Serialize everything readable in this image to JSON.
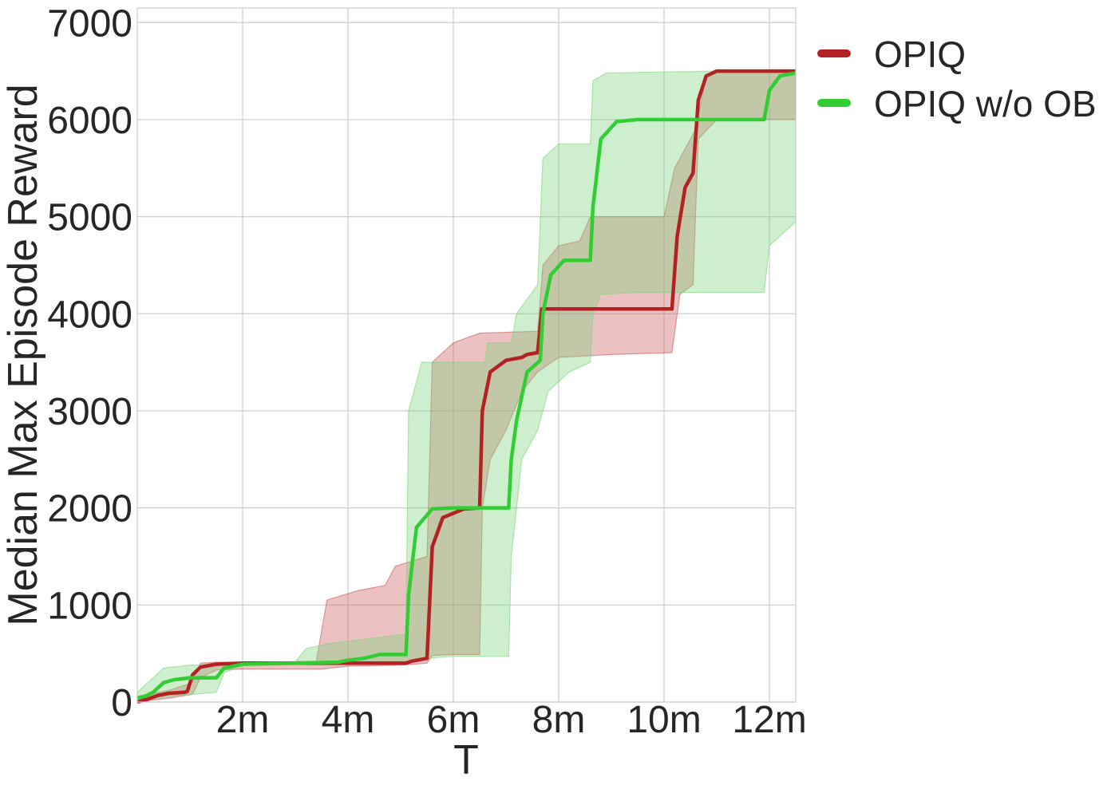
{
  "chart_data": {
    "type": "line",
    "xlabel": "T",
    "ylabel": "Median Max Episode Reward",
    "xlim": [
      0,
      12.5
    ],
    "ylim": [
      0,
      7150
    ],
    "x_unit_suffix": "m",
    "xticks": [
      2,
      4,
      6,
      8,
      10,
      12
    ],
    "xtick_labels": [
      "2m",
      "4m",
      "6m",
      "8m",
      "10m",
      "12m"
    ],
    "yticks": [
      0,
      1000,
      2000,
      3000,
      4000,
      5000,
      6000,
      7000
    ],
    "ytick_labels": [
      "0",
      "1000",
      "2000",
      "3000",
      "4000",
      "5000",
      "6000",
      "7000"
    ],
    "grid": true,
    "legend_position": "outside-top-right",
    "series": [
      {
        "name": "OPIQ",
        "color": "#b22222",
        "band_color": "#cd5c5c",
        "median": [
          [
            0,
            0
          ],
          [
            0.2,
            30
          ],
          [
            0.4,
            70
          ],
          [
            0.6,
            90
          ],
          [
            0.9,
            100
          ],
          [
            0.95,
            110
          ],
          [
            1.05,
            280
          ],
          [
            1.2,
            360
          ],
          [
            1.5,
            390
          ],
          [
            2,
            400
          ],
          [
            3,
            400
          ],
          [
            4,
            400
          ],
          [
            5.1,
            400
          ],
          [
            5.2,
            420
          ],
          [
            5.5,
            450
          ],
          [
            5.6,
            1600
          ],
          [
            5.8,
            1900
          ],
          [
            6.2,
            1990
          ],
          [
            6.5,
            2000
          ],
          [
            6.55,
            3000
          ],
          [
            6.7,
            3400
          ],
          [
            7,
            3520
          ],
          [
            7.3,
            3550
          ],
          [
            7.4,
            3580
          ],
          [
            7.6,
            3600
          ],
          [
            7.68,
            4050
          ],
          [
            8,
            4050
          ],
          [
            9,
            4050
          ],
          [
            10,
            4050
          ],
          [
            10.15,
            4050
          ],
          [
            10.25,
            4800
          ],
          [
            10.4,
            5300
          ],
          [
            10.55,
            5450
          ],
          [
            10.65,
            6200
          ],
          [
            10.8,
            6450
          ],
          [
            11,
            6500
          ],
          [
            12.5,
            6500
          ]
        ],
        "lower": [
          [
            0,
            0
          ],
          [
            0.6,
            40
          ],
          [
            1.05,
            80
          ],
          [
            1.2,
            250
          ],
          [
            1.5,
            330
          ],
          [
            2,
            340
          ],
          [
            3.5,
            340
          ],
          [
            4,
            370
          ],
          [
            5,
            380
          ],
          [
            5.5,
            400
          ],
          [
            5.6,
            480
          ],
          [
            6,
            490
          ],
          [
            6.5,
            490
          ],
          [
            6.55,
            2000
          ],
          [
            6.7,
            2500
          ],
          [
            7,
            2800
          ],
          [
            7.3,
            3200
          ],
          [
            7.6,
            3400
          ],
          [
            8,
            3550
          ],
          [
            9,
            3580
          ],
          [
            10.15,
            3600
          ],
          [
            10.3,
            4200
          ],
          [
            10.55,
            4300
          ],
          [
            10.65,
            5800
          ],
          [
            11,
            6000
          ],
          [
            12.5,
            6000
          ]
        ],
        "upper": [
          [
            0,
            60
          ],
          [
            0.6,
            120
          ],
          [
            1.05,
            200
          ],
          [
            1.2,
            400
          ],
          [
            1.5,
            410
          ],
          [
            2,
            410
          ],
          [
            3.4,
            420
          ],
          [
            3.6,
            1050
          ],
          [
            4.2,
            1150
          ],
          [
            4.7,
            1200
          ],
          [
            4.9,
            1400
          ],
          [
            5.5,
            1500
          ],
          [
            5.6,
            3500
          ],
          [
            6,
            3700
          ],
          [
            6.5,
            3800
          ],
          [
            7.6,
            3820
          ],
          [
            7.7,
            4500
          ],
          [
            8,
            4700
          ],
          [
            8.4,
            4750
          ],
          [
            8.6,
            5000
          ],
          [
            10,
            5000
          ],
          [
            10.2,
            5500
          ],
          [
            10.6,
            5900
          ],
          [
            10.8,
            6450
          ],
          [
            11,
            6500
          ],
          [
            12.5,
            6500
          ]
        ]
      },
      {
        "name": "OPIQ w/o OB",
        "color": "#32cd32",
        "band_color": "#7fd67f",
        "median": [
          [
            0,
            40
          ],
          [
            0.15,
            60
          ],
          [
            0.3,
            100
          ],
          [
            0.5,
            200
          ],
          [
            0.7,
            230
          ],
          [
            1.0,
            250
          ],
          [
            1.5,
            250
          ],
          [
            1.65,
            350
          ],
          [
            2,
            390
          ],
          [
            3,
            400
          ],
          [
            3.8,
            410
          ],
          [
            4,
            430
          ],
          [
            4.3,
            450
          ],
          [
            4.6,
            490
          ],
          [
            5.1,
            490
          ],
          [
            5.15,
            1100
          ],
          [
            5.3,
            1800
          ],
          [
            5.6,
            1990
          ],
          [
            6,
            2000
          ],
          [
            7.05,
            2000
          ],
          [
            7.1,
            2500
          ],
          [
            7.2,
            2900
          ],
          [
            7.4,
            3400
          ],
          [
            7.65,
            3520
          ],
          [
            7.7,
            4000
          ],
          [
            7.85,
            4400
          ],
          [
            8.1,
            4550
          ],
          [
            8.6,
            4550
          ],
          [
            8.65,
            5100
          ],
          [
            8.8,
            5800
          ],
          [
            9.1,
            5980
          ],
          [
            9.5,
            6000
          ],
          [
            11.9,
            6000
          ],
          [
            12,
            6300
          ],
          [
            12.2,
            6450
          ],
          [
            12.5,
            6480
          ]
        ],
        "lower": [
          [
            0,
            0
          ],
          [
            0.6,
            60
          ],
          [
            1.5,
            100
          ],
          [
            1.65,
            300
          ],
          [
            2,
            380
          ],
          [
            5,
            390
          ],
          [
            5.5,
            450
          ],
          [
            6,
            470
          ],
          [
            7.05,
            470
          ],
          [
            7.1,
            1500
          ],
          [
            7.3,
            2500
          ],
          [
            7.6,
            2800
          ],
          [
            7.8,
            3200
          ],
          [
            8.2,
            3400
          ],
          [
            8.6,
            3500
          ],
          [
            8.65,
            4000
          ],
          [
            8.8,
            4200
          ],
          [
            9.5,
            4220
          ],
          [
            11.9,
            4220
          ],
          [
            12,
            4700
          ],
          [
            12.5,
            4950
          ]
        ],
        "upper": [
          [
            0,
            100
          ],
          [
            0.5,
            350
          ],
          [
            1,
            380
          ],
          [
            2,
            400
          ],
          [
            3,
            410
          ],
          [
            3.2,
            550
          ],
          [
            3.6,
            600
          ],
          [
            5.1,
            700
          ],
          [
            5.15,
            3000
          ],
          [
            5.4,
            3500
          ],
          [
            6.6,
            3500
          ],
          [
            6.65,
            3700
          ],
          [
            7.1,
            3700
          ],
          [
            7.2,
            4000
          ],
          [
            7.6,
            4300
          ],
          [
            7.7,
            5600
          ],
          [
            8.0,
            5750
          ],
          [
            8.6,
            5750
          ],
          [
            8.65,
            6400
          ],
          [
            8.9,
            6480
          ],
          [
            11.0,
            6500
          ],
          [
            12.5,
            6500
          ]
        ]
      }
    ]
  }
}
